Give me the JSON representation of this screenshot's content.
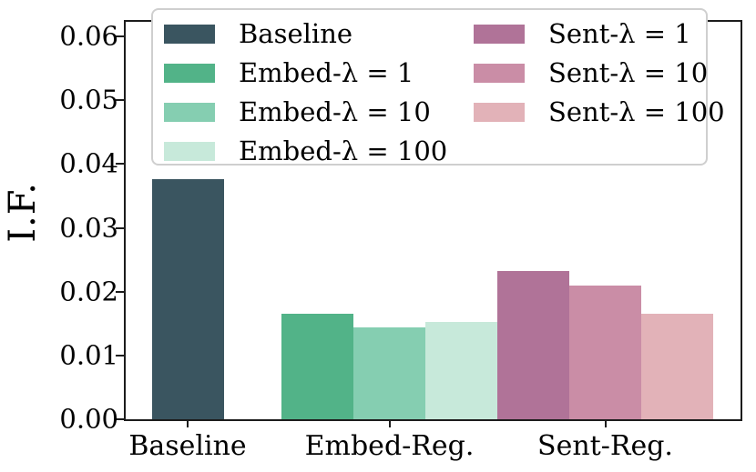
{
  "chart_data": {
    "type": "bar",
    "title": "",
    "ylabel": "I.F.",
    "xlabel": "",
    "ylim": [
      0,
      0.0623
    ],
    "yticks": [
      0.0,
      0.01,
      0.02,
      0.03,
      0.04,
      0.05,
      0.06
    ],
    "ytick_labels": [
      "0.00",
      "0.01",
      "0.02",
      "0.03",
      "0.04",
      "0.05",
      "0.06"
    ],
    "categories": [
      "Baseline",
      "Embed-Reg.",
      "Sent-Reg."
    ],
    "grid": false,
    "legend_position": "upper center inside axes, 2 columns",
    "axis_color": "#1c1c1c",
    "series": [
      {
        "name": "Baseline",
        "color": "#3a5560",
        "group": 0,
        "value": 0.0376
      },
      {
        "name": "Embed-λ = 1",
        "color": "#52b388",
        "group": 1,
        "value": 0.0165
      },
      {
        "name": "Embed-λ = 10",
        "color": "#85ceb1",
        "group": 1,
        "value": 0.0144
      },
      {
        "name": "Embed-λ = 100",
        "color": "#c7e9da",
        "group": 1,
        "value": 0.0152
      },
      {
        "name": "Sent-λ = 1",
        "color": "#b07398",
        "group": 2,
        "value": 0.0232
      },
      {
        "name": "Sent-λ = 10",
        "color": "#ca8da6",
        "group": 2,
        "value": 0.021
      },
      {
        "name": "Sent-λ = 100",
        "color": "#e2b2b8",
        "group": 2,
        "value": 0.0165
      }
    ],
    "legend_columns": [
      [
        0,
        1,
        2,
        3
      ],
      [
        4,
        5,
        6
      ]
    ]
  }
}
